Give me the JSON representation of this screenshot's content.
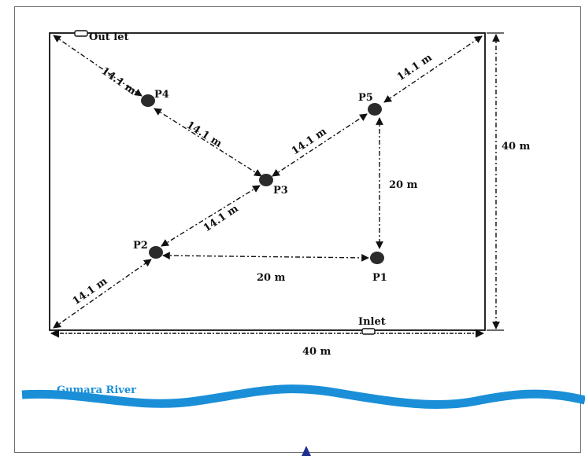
{
  "labels": {
    "outlet": "Out let",
    "inlet": "Inlet",
    "p1": "P1",
    "p2": "P2",
    "p3": "P3",
    "p4": "P4",
    "p5": "P5",
    "diag_outlet_p4": "14.1 m",
    "diag_p4_p3": "14.1 m",
    "diag_p3_p5": "14.1 m",
    "diag_p5_corner": "14.1 m",
    "diag_p2_p3": "14.1 m",
    "diag_corner_p2": "14.1 m",
    "dist_p1_p2": "20 m",
    "dist_p5_p1": "20 m",
    "side_width": "40 m",
    "side_height": "40 m",
    "river": "Gumara River"
  },
  "colors": {
    "river": "#1a8fd8",
    "north_marker": "#1f2f8f",
    "lines": "#111111"
  }
}
